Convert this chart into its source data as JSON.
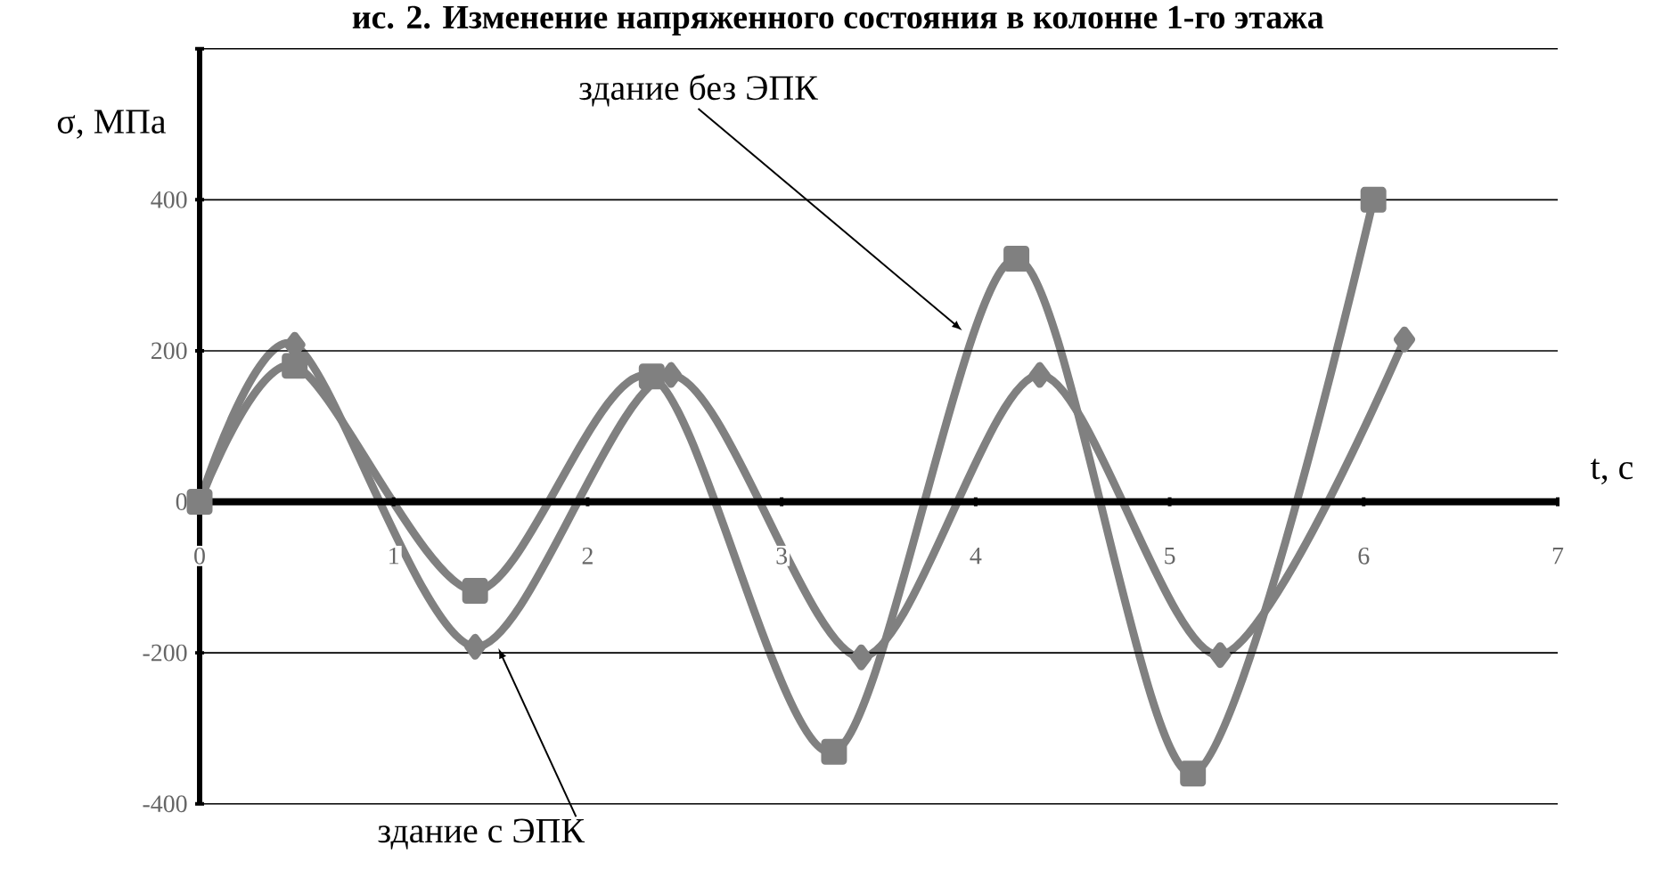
{
  "chart_data": {
    "type": "line",
    "title": "ис. 2. Изменение напряженного состояния в колонне 1-го этажа",
    "xlabel": "t, с",
    "ylabel": "σ, МПа",
    "xlim": [
      0,
      7
    ],
    "xticks": [
      0,
      1,
      2,
      3,
      4,
      5,
      6,
      7
    ],
    "ylim": [
      -400,
      600
    ],
    "yticks": [
      -400,
      -200,
      0,
      200,
      400,
      {
        "value": 600,
        "label": null
      }
    ],
    "grid": "y",
    "line_style": "solid",
    "series": [
      {
        "name": "здание без ЭПК",
        "color": "#808080",
        "marker": "square",
        "x": [
          0,
          0.49,
          1.42,
          2.33,
          3.27,
          4.21,
          5.12,
          6.05
        ],
        "values": [
          0,
          180,
          -118,
          166,
          -331,
          322,
          -360,
          400
        ]
      },
      {
        "name": "здание с ЭПК",
        "color": "#808080",
        "marker": "diamond",
        "x": [
          0,
          0.49,
          1.42,
          2.43,
          3.41,
          4.33,
          5.26,
          6.21
        ],
        "values": [
          0,
          208,
          -192,
          168,
          -206,
          168,
          -203,
          215
        ]
      }
    ]
  }
}
